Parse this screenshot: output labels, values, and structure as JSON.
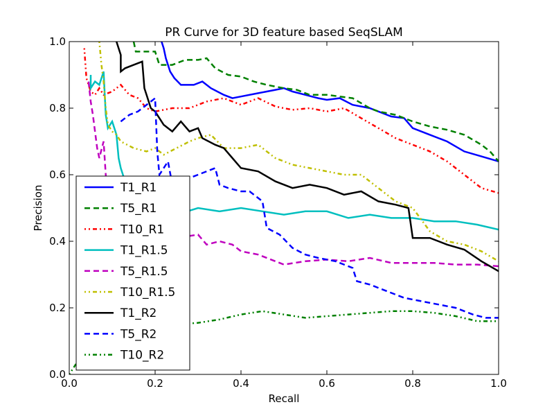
{
  "chart_data": {
    "type": "line",
    "title": "PR Curve for 3D feature based SeqSLAM",
    "xlabel": "Recall",
    "ylabel": "Precision",
    "xlim": [
      0,
      1
    ],
    "ylim": [
      0,
      1
    ],
    "xticks": [
      "0.0",
      "0.2",
      "0.4",
      "0.6",
      "0.8",
      "1.0"
    ],
    "yticks": [
      "0.0",
      "0.2",
      "0.4",
      "0.6",
      "0.8",
      "1.0"
    ],
    "grid": false,
    "legend_position": "lower-left",
    "series": [
      {
        "name": "T1_R1",
        "color": "#0000ff",
        "dash": "solid",
        "points": [
          [
            0.215,
            1.0
          ],
          [
            0.22,
            0.98
          ],
          [
            0.225,
            0.95
          ],
          [
            0.235,
            0.91
          ],
          [
            0.245,
            0.89
          ],
          [
            0.26,
            0.87
          ],
          [
            0.29,
            0.87
          ],
          [
            0.31,
            0.88
          ],
          [
            0.33,
            0.86
          ],
          [
            0.36,
            0.84
          ],
          [
            0.38,
            0.83
          ],
          [
            0.4,
            0.835
          ],
          [
            0.44,
            0.845
          ],
          [
            0.48,
            0.855
          ],
          [
            0.5,
            0.86
          ],
          [
            0.52,
            0.85
          ],
          [
            0.55,
            0.84
          ],
          [
            0.58,
            0.83
          ],
          [
            0.6,
            0.825
          ],
          [
            0.63,
            0.83
          ],
          [
            0.66,
            0.81
          ],
          [
            0.7,
            0.8
          ],
          [
            0.75,
            0.775
          ],
          [
            0.78,
            0.77
          ],
          [
            0.8,
            0.74
          ],
          [
            0.84,
            0.72
          ],
          [
            0.88,
            0.7
          ],
          [
            0.92,
            0.67
          ],
          [
            0.96,
            0.655
          ],
          [
            1.0,
            0.64
          ]
        ]
      },
      {
        "name": "T5_R1",
        "color": "#008000",
        "dash": "8,5",
        "points": [
          [
            0.15,
            1.0
          ],
          [
            0.155,
            0.97
          ],
          [
            0.2,
            0.97
          ],
          [
            0.21,
            0.93
          ],
          [
            0.24,
            0.93
          ],
          [
            0.27,
            0.945
          ],
          [
            0.3,
            0.945
          ],
          [
            0.32,
            0.95
          ],
          [
            0.34,
            0.92
          ],
          [
            0.37,
            0.9
          ],
          [
            0.4,
            0.895
          ],
          [
            0.43,
            0.88
          ],
          [
            0.46,
            0.87
          ],
          [
            0.5,
            0.86
          ],
          [
            0.53,
            0.855
          ],
          [
            0.56,
            0.84
          ],
          [
            0.6,
            0.84
          ],
          [
            0.63,
            0.835
          ],
          [
            0.66,
            0.83
          ],
          [
            0.7,
            0.8
          ],
          [
            0.72,
            0.79
          ],
          [
            0.76,
            0.78
          ],
          [
            0.8,
            0.76
          ],
          [
            0.84,
            0.745
          ],
          [
            0.88,
            0.735
          ],
          [
            0.92,
            0.72
          ],
          [
            0.96,
            0.69
          ],
          [
            0.98,
            0.67
          ],
          [
            1.0,
            0.64
          ]
        ]
      },
      {
        "name": "T10_R1",
        "color": "#ff0000",
        "dash": "2,4,2,4,6,4",
        "points": [
          [
            0.035,
            0.98
          ],
          [
            0.04,
            0.89
          ],
          [
            0.05,
            0.85
          ],
          [
            0.06,
            0.84
          ],
          [
            0.07,
            0.86
          ],
          [
            0.08,
            0.84
          ],
          [
            0.1,
            0.85
          ],
          [
            0.12,
            0.87
          ],
          [
            0.14,
            0.84
          ],
          [
            0.16,
            0.83
          ],
          [
            0.18,
            0.8
          ],
          [
            0.2,
            0.79
          ],
          [
            0.24,
            0.8
          ],
          [
            0.28,
            0.8
          ],
          [
            0.32,
            0.82
          ],
          [
            0.36,
            0.83
          ],
          [
            0.4,
            0.81
          ],
          [
            0.44,
            0.83
          ],
          [
            0.48,
            0.805
          ],
          [
            0.52,
            0.795
          ],
          [
            0.56,
            0.8
          ],
          [
            0.6,
            0.79
          ],
          [
            0.64,
            0.8
          ],
          [
            0.68,
            0.77
          ],
          [
            0.72,
            0.74
          ],
          [
            0.76,
            0.71
          ],
          [
            0.8,
            0.69
          ],
          [
            0.84,
            0.67
          ],
          [
            0.88,
            0.64
          ],
          [
            0.92,
            0.6
          ],
          [
            0.96,
            0.56
          ],
          [
            1.0,
            0.545
          ]
        ]
      },
      {
        "name": "T1_R1.5",
        "color": "#00bfbf",
        "dash": "solid",
        "points": [
          [
            0.05,
            0.9
          ],
          [
            0.05,
            0.86
          ],
          [
            0.06,
            0.88
          ],
          [
            0.07,
            0.87
          ],
          [
            0.08,
            0.91
          ],
          [
            0.085,
            0.78
          ],
          [
            0.09,
            0.74
          ],
          [
            0.1,
            0.76
          ],
          [
            0.11,
            0.72
          ],
          [
            0.115,
            0.65
          ],
          [
            0.12,
            0.62
          ],
          [
            0.13,
            0.58
          ],
          [
            0.14,
            0.54
          ],
          [
            0.15,
            0.5
          ],
          [
            0.17,
            0.48
          ],
          [
            0.2,
            0.51
          ],
          [
            0.25,
            0.48
          ],
          [
            0.3,
            0.5
          ],
          [
            0.35,
            0.49
          ],
          [
            0.4,
            0.5
          ],
          [
            0.45,
            0.49
          ],
          [
            0.5,
            0.48
          ],
          [
            0.55,
            0.49
          ],
          [
            0.6,
            0.49
          ],
          [
            0.65,
            0.47
          ],
          [
            0.7,
            0.48
          ],
          [
            0.75,
            0.47
          ],
          [
            0.8,
            0.47
          ],
          [
            0.85,
            0.46
          ],
          [
            0.9,
            0.46
          ],
          [
            0.95,
            0.45
          ],
          [
            1.0,
            0.435
          ]
        ]
      },
      {
        "name": "T5_R1.5",
        "color": "#bf00bf",
        "dash": "8,5",
        "points": [
          [
            0.045,
            0.88
          ],
          [
            0.05,
            0.82
          ],
          [
            0.055,
            0.78
          ],
          [
            0.06,
            0.73
          ],
          [
            0.065,
            0.68
          ],
          [
            0.07,
            0.65
          ],
          [
            0.08,
            0.7
          ],
          [
            0.085,
            0.6
          ],
          [
            0.09,
            0.52
          ],
          [
            0.1,
            0.48
          ],
          [
            0.13,
            0.44
          ],
          [
            0.16,
            0.43
          ],
          [
            0.2,
            0.42
          ],
          [
            0.25,
            0.41
          ],
          [
            0.3,
            0.42
          ],
          [
            0.32,
            0.39
          ],
          [
            0.35,
            0.4
          ],
          [
            0.38,
            0.39
          ],
          [
            0.4,
            0.37
          ],
          [
            0.44,
            0.36
          ],
          [
            0.48,
            0.34
          ],
          [
            0.5,
            0.33
          ],
          [
            0.55,
            0.34
          ],
          [
            0.6,
            0.345
          ],
          [
            0.65,
            0.34
          ],
          [
            0.7,
            0.35
          ],
          [
            0.75,
            0.335
          ],
          [
            0.8,
            0.335
          ],
          [
            0.85,
            0.335
          ],
          [
            0.9,
            0.33
          ],
          [
            0.95,
            0.33
          ],
          [
            1.0,
            0.325
          ]
        ]
      },
      {
        "name": "T10_R1.5",
        "color": "#bfbf00",
        "dash": "2,4,2,4,6,4",
        "points": [
          [
            0.07,
            1.0
          ],
          [
            0.075,
            0.93
          ],
          [
            0.08,
            0.88
          ],
          [
            0.085,
            0.8
          ],
          [
            0.09,
            0.75
          ],
          [
            0.1,
            0.73
          ],
          [
            0.11,
            0.72
          ],
          [
            0.12,
            0.7
          ],
          [
            0.15,
            0.68
          ],
          [
            0.18,
            0.67
          ],
          [
            0.2,
            0.68
          ],
          [
            0.22,
            0.66
          ],
          [
            0.25,
            0.68
          ],
          [
            0.28,
            0.7
          ],
          [
            0.3,
            0.71
          ],
          [
            0.33,
            0.72
          ],
          [
            0.36,
            0.68
          ],
          [
            0.4,
            0.68
          ],
          [
            0.44,
            0.69
          ],
          [
            0.48,
            0.65
          ],
          [
            0.52,
            0.63
          ],
          [
            0.56,
            0.62
          ],
          [
            0.6,
            0.61
          ],
          [
            0.64,
            0.6
          ],
          [
            0.68,
            0.6
          ],
          [
            0.72,
            0.56
          ],
          [
            0.76,
            0.52
          ],
          [
            0.8,
            0.5
          ],
          [
            0.84,
            0.43
          ],
          [
            0.88,
            0.4
          ],
          [
            0.92,
            0.39
          ],
          [
            0.96,
            0.37
          ],
          [
            1.0,
            0.34
          ]
        ]
      },
      {
        "name": "T1_R2",
        "color": "#000000",
        "dash": "solid",
        "points": [
          [
            0.11,
            1.0
          ],
          [
            0.115,
            0.98
          ],
          [
            0.12,
            0.96
          ],
          [
            0.12,
            0.91
          ],
          [
            0.13,
            0.92
          ],
          [
            0.15,
            0.93
          ],
          [
            0.17,
            0.94
          ],
          [
            0.175,
            0.86
          ],
          [
            0.18,
            0.84
          ],
          [
            0.19,
            0.8
          ],
          [
            0.2,
            0.79
          ],
          [
            0.21,
            0.77
          ],
          [
            0.22,
            0.75
          ],
          [
            0.24,
            0.73
          ],
          [
            0.26,
            0.76
          ],
          [
            0.28,
            0.73
          ],
          [
            0.3,
            0.74
          ],
          [
            0.31,
            0.71
          ],
          [
            0.34,
            0.69
          ],
          [
            0.36,
            0.68
          ],
          [
            0.38,
            0.65
          ],
          [
            0.4,
            0.62
          ],
          [
            0.44,
            0.61
          ],
          [
            0.48,
            0.58
          ],
          [
            0.52,
            0.56
          ],
          [
            0.56,
            0.57
          ],
          [
            0.6,
            0.56
          ],
          [
            0.64,
            0.54
          ],
          [
            0.68,
            0.55
          ],
          [
            0.72,
            0.52
          ],
          [
            0.76,
            0.51
          ],
          [
            0.79,
            0.5
          ],
          [
            0.8,
            0.41
          ],
          [
            0.84,
            0.41
          ],
          [
            0.88,
            0.39
          ],
          [
            0.92,
            0.375
          ],
          [
            0.96,
            0.34
          ],
          [
            1.0,
            0.31
          ]
        ]
      },
      {
        "name": "T5_R2",
        "color": "#0000ff",
        "dash": "8,5",
        "points": [
          [
            0.12,
            0.76
          ],
          [
            0.14,
            0.78
          ],
          [
            0.16,
            0.79
          ],
          [
            0.18,
            0.81
          ],
          [
            0.2,
            0.83
          ],
          [
            0.205,
            0.67
          ],
          [
            0.21,
            0.6
          ],
          [
            0.22,
            0.62
          ],
          [
            0.23,
            0.64
          ],
          [
            0.24,
            0.57
          ],
          [
            0.26,
            0.58
          ],
          [
            0.3,
            0.6
          ],
          [
            0.34,
            0.62
          ],
          [
            0.35,
            0.57
          ],
          [
            0.37,
            0.56
          ],
          [
            0.4,
            0.55
          ],
          [
            0.42,
            0.55
          ],
          [
            0.45,
            0.52
          ],
          [
            0.46,
            0.44
          ],
          [
            0.49,
            0.42
          ],
          [
            0.52,
            0.38
          ],
          [
            0.55,
            0.36
          ],
          [
            0.58,
            0.35
          ],
          [
            0.62,
            0.34
          ],
          [
            0.66,
            0.32
          ],
          [
            0.67,
            0.28
          ],
          [
            0.7,
            0.27
          ],
          [
            0.74,
            0.25
          ],
          [
            0.78,
            0.23
          ],
          [
            0.82,
            0.22
          ],
          [
            0.86,
            0.21
          ],
          [
            0.9,
            0.2
          ],
          [
            0.94,
            0.18
          ],
          [
            0.97,
            0.17
          ],
          [
            1.0,
            0.17
          ]
        ]
      },
      {
        "name": "T10_R2",
        "color": "#008000",
        "dash": "2,4,2,4,6,4",
        "points": [
          [
            0.0,
            0.0
          ],
          [
            0.02,
            0.04
          ],
          [
            0.06,
            0.09
          ],
          [
            0.1,
            0.12
          ],
          [
            0.15,
            0.14
          ],
          [
            0.2,
            0.14
          ],
          [
            0.25,
            0.15
          ],
          [
            0.3,
            0.155
          ],
          [
            0.35,
            0.165
          ],
          [
            0.4,
            0.18
          ],
          [
            0.45,
            0.19
          ],
          [
            0.5,
            0.18
          ],
          [
            0.55,
            0.17
          ],
          [
            0.6,
            0.175
          ],
          [
            0.65,
            0.18
          ],
          [
            0.7,
            0.185
          ],
          [
            0.75,
            0.19
          ],
          [
            0.8,
            0.19
          ],
          [
            0.85,
            0.185
          ],
          [
            0.9,
            0.175
          ],
          [
            0.95,
            0.16
          ],
          [
            1.0,
            0.16
          ]
        ]
      }
    ]
  }
}
